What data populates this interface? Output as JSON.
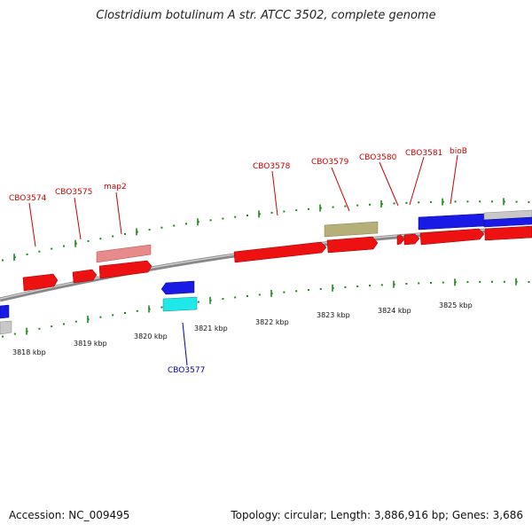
{
  "title": "Clostridium botulinum A str. ATCC 3502, complete genome",
  "footer": {
    "accession": "Accession: NC_009495",
    "summary": "Topology: circular; Length: 3,886,916 bp; Genes: 3,686"
  },
  "colors": {
    "forward_cds": "#ee1111",
    "reverse_cds": "#1a1ae6",
    "pseudo_light": "#e88a8a",
    "olive": "#b5b07a",
    "cyan": "#1fe8e8",
    "gray": "#c8c8c8",
    "forward_label": "#cc0000",
    "reverse_label": "#0000aa",
    "tick": "#1a8a1a"
  },
  "scale_labels": [
    "3818 kbp",
    "3819 kbp",
    "3820 kbp",
    "3821 kbp",
    "3822 kbp",
    "3823 kbp",
    "3824 kbp",
    "3825 kbp"
  ],
  "gene_labels": {
    "CBO3574": "CBO3574",
    "CBO3575": "CBO3575",
    "map2": "map2",
    "CBO3578": "CBO3578",
    "CBO3579": "CBO3579",
    "CBO3580": "CBO3580",
    "CBO3581": "CBO3581",
    "bioB": "bioB",
    "CBO3577": "CBO3577"
  }
}
